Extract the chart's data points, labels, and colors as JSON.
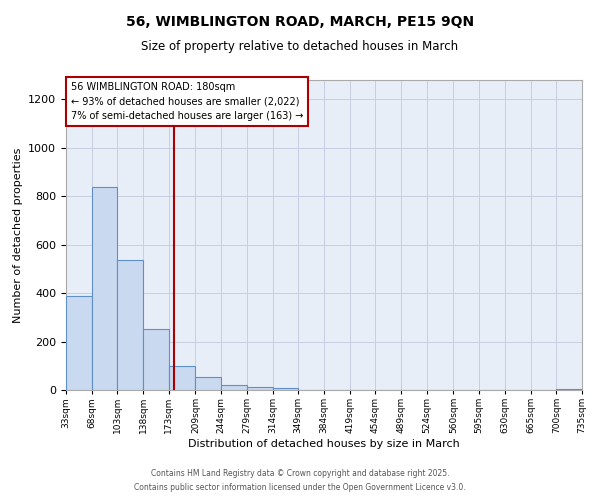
{
  "title_line1": "56, WIMBLINGTON ROAD, MARCH, PE15 9QN",
  "title_line2": "Size of property relative to detached houses in March",
  "xlabel": "Distribution of detached houses by size in March",
  "ylabel": "Number of detached properties",
  "bin_edges": [
    33,
    68,
    103,
    138,
    173,
    209,
    244,
    279,
    314,
    349,
    384,
    419,
    454,
    489,
    524,
    560,
    595,
    630,
    665,
    700,
    735
  ],
  "bin_labels": [
    "33sqm",
    "68sqm",
    "103sqm",
    "138sqm",
    "173sqm",
    "209sqm",
    "244sqm",
    "279sqm",
    "314sqm",
    "349sqm",
    "384sqm",
    "419sqm",
    "454sqm",
    "489sqm",
    "524sqm",
    "560sqm",
    "595sqm",
    "630sqm",
    "665sqm",
    "700sqm",
    "735sqm"
  ],
  "counts": [
    390,
    840,
    535,
    250,
    100,
    55,
    20,
    13,
    8,
    0,
    0,
    0,
    0,
    0,
    0,
    0,
    0,
    0,
    0,
    5
  ],
  "bar_color": "#c9d9ef",
  "bar_edge_color": "#6090c8",
  "vline_x": 180,
  "vline_color": "#aa0000",
  "annotation_line1": "56 WIMBLINGTON ROAD: 180sqm",
  "annotation_line2": "← 93% of detached houses are smaller (2,022)",
  "annotation_line3": "7% of semi-detached houses are larger (163) →",
  "ylim": [
    0,
    1280
  ],
  "yticks": [
    0,
    200,
    400,
    600,
    800,
    1000,
    1200
  ],
  "bg_color": "#ffffff",
  "plot_bg_color": "#e8eef8",
  "grid_color": "#c8cfe0",
  "footer_line1": "Contains HM Land Registry data © Crown copyright and database right 2025.",
  "footer_line2": "Contains public sector information licensed under the Open Government Licence v3.0."
}
